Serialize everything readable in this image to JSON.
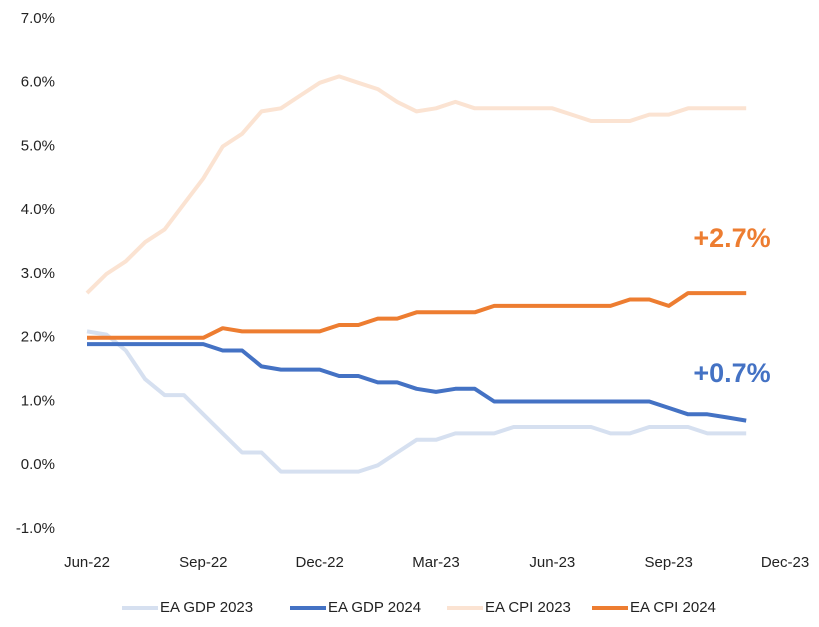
{
  "chart_data": {
    "type": "line",
    "categories": [
      "Jun-22",
      null,
      null,
      null,
      null,
      null,
      "Sep-22",
      null,
      null,
      null,
      null,
      null,
      "Dec-22",
      null,
      null,
      null,
      null,
      null,
      "Mar-23",
      null,
      null,
      null,
      null,
      null,
      "Jun-23",
      null,
      null,
      null,
      null,
      null,
      "Sep-23",
      null,
      null,
      null,
      null,
      null,
      "Dec-23"
    ],
    "series": [
      {
        "name": "EA GDP 2023",
        "color": "#d6e0f0",
        "values": [
          2.1,
          2.05,
          1.8,
          1.35,
          1.1,
          1.1,
          0.8,
          0.5,
          0.2,
          0.2,
          -0.1,
          -0.1,
          -0.1,
          -0.1,
          -0.1,
          0.0,
          0.2,
          0.4,
          0.4,
          0.5,
          0.5,
          0.5,
          0.6,
          0.6,
          0.6,
          0.6,
          0.6,
          0.5,
          0.5,
          0.6,
          0.6,
          0.6,
          0.5,
          0.5,
          0.5,
          null,
          null
        ]
      },
      {
        "name": "EA GDP 2024",
        "color": "#4472c4",
        "values": [
          1.9,
          1.9,
          1.9,
          1.9,
          1.9,
          1.9,
          1.9,
          1.8,
          1.8,
          1.55,
          1.5,
          1.5,
          1.5,
          1.4,
          1.4,
          1.3,
          1.3,
          1.2,
          1.15,
          1.2,
          1.2,
          1.0,
          1.0,
          1.0,
          1.0,
          1.0,
          1.0,
          1.0,
          1.0,
          1.0,
          0.9,
          0.8,
          0.8,
          0.75,
          0.7,
          null,
          null
        ]
      },
      {
        "name": "EA CPI 2023",
        "color": "#fbe3d2",
        "values": [
          2.7,
          3.0,
          3.2,
          3.5,
          3.7,
          4.1,
          4.5,
          5.0,
          5.2,
          5.55,
          5.6,
          5.8,
          6.0,
          6.1,
          6.0,
          5.9,
          5.7,
          5.55,
          5.6,
          5.7,
          5.6,
          5.6,
          5.6,
          5.6,
          5.6,
          5.5,
          5.4,
          5.4,
          5.4,
          5.5,
          5.5,
          5.6,
          5.6,
          5.6,
          5.6,
          null,
          null
        ]
      },
      {
        "name": "EA CPI 2024",
        "color": "#ed7d31",
        "values": [
          2.0,
          2.0,
          2.0,
          2.0,
          2.0,
          2.0,
          2.0,
          2.15,
          2.1,
          2.1,
          2.1,
          2.1,
          2.1,
          2.2,
          2.2,
          2.3,
          2.3,
          2.4,
          2.4,
          2.4,
          2.4,
          2.5,
          2.5,
          2.5,
          2.5,
          2.5,
          2.5,
          2.5,
          2.6,
          2.6,
          2.5,
          2.7,
          2.7,
          2.7,
          2.7,
          null,
          null
        ]
      }
    ],
    "annotations": [
      {
        "text": "+2.7%",
        "color": "#ed7d31"
      },
      {
        "text": "+0.7%",
        "color": "#4472c4"
      }
    ],
    "ylim": [
      -1,
      7
    ],
    "yticks": [
      {
        "value": -1,
        "label": "-1.0%"
      },
      {
        "value": 0,
        "label": "0.0%"
      },
      {
        "value": 1,
        "label": "1.0%"
      },
      {
        "value": 2,
        "label": "2.0%"
      },
      {
        "value": 3,
        "label": "3.0%"
      },
      {
        "value": 4,
        "label": "4.0%"
      },
      {
        "value": 5,
        "label": "5.0%"
      },
      {
        "value": 6,
        "label": "6.0%"
      },
      {
        "value": 7,
        "label": "7.0%"
      }
    ],
    "grid": false,
    "legend": "bottom"
  }
}
